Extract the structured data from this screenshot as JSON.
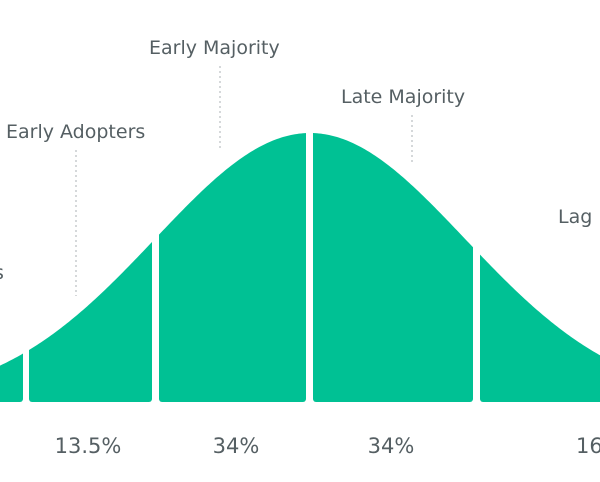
{
  "chart_data": {
    "type": "area",
    "segments": [
      {
        "name": "Innovators",
        "shown_name": "s",
        "percent_label": "",
        "percent": 2.5
      },
      {
        "name": "Early Adopters",
        "shown_name": "Early Adopters",
        "percent_label": "13.5%",
        "percent": 13.5
      },
      {
        "name": "Early Majority",
        "shown_name": "Early Majority",
        "percent_label": "34%",
        "percent": 34
      },
      {
        "name": "Late Majority",
        "shown_name": "Late Majority",
        "percent_label": "34%",
        "percent": 34
      },
      {
        "name": "Laggards",
        "shown_name": "Lag",
        "percent_label": "16",
        "percent": 16
      }
    ],
    "fill_color": "#00c194",
    "text_color": "#555f63",
    "leader_color": "#b9bfc2",
    "grid": false
  }
}
